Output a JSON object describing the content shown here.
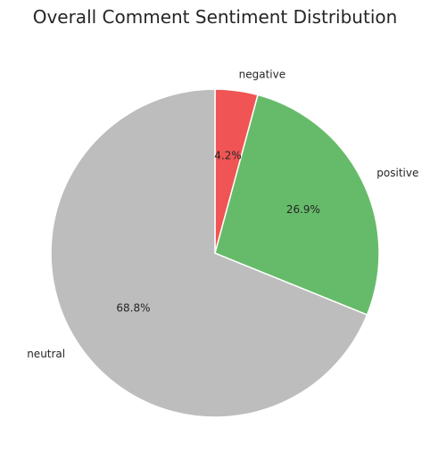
{
  "chart_data": {
    "type": "pie",
    "title": "Overall Comment Sentiment Distribution",
    "slices": [
      {
        "label": "negative",
        "value": 4.2,
        "pct_label": "4.2%",
        "color": "#f05454"
      },
      {
        "label": "positive",
        "value": 26.9,
        "pct_label": "26.9%",
        "color": "#66bb6a"
      },
      {
        "label": "neutral",
        "value": 68.8,
        "pct_label": "68.8%",
        "color": "#bdbdbd"
      }
    ],
    "start_angle_deg": 90,
    "direction": "clockwise",
    "legend": "none"
  }
}
